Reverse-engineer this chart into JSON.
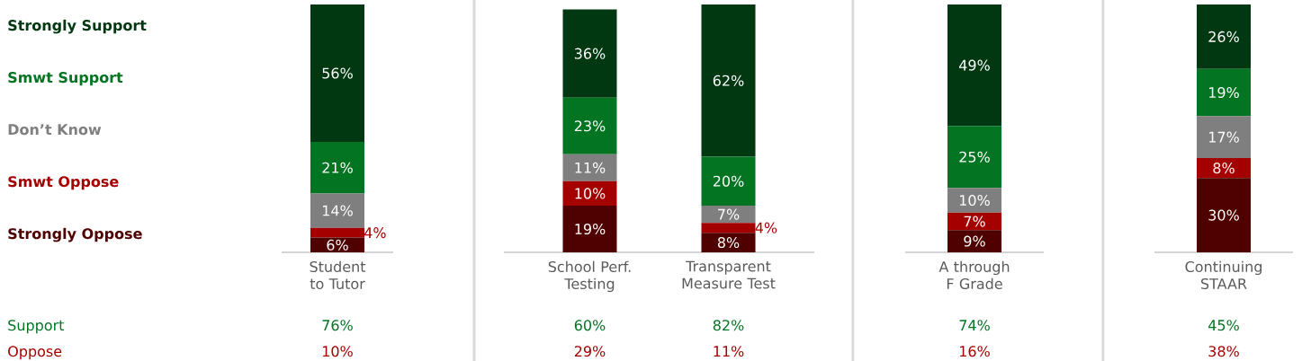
{
  "chart_data": [
    {
      "type": "bar",
      "stacked": true,
      "legend": "left",
      "categories": [
        "Student to Tutor"
      ],
      "series": [
        {
          "name": "Strongly Oppose",
          "color": "#4f0000",
          "values": [
            6
          ],
          "value_labels": [
            "6%"
          ]
        },
        {
          "name": "Smwt Oppose",
          "color": "#a50000",
          "values": [
            4
          ],
          "value_labels": [
            "4%"
          ]
        },
        {
          "name": "Don’t Know",
          "color": "#7f7f7f",
          "values": [
            14
          ],
          "value_labels": [
            "14%"
          ]
        },
        {
          "name": "Smwt Support",
          "color": "#037422",
          "values": [
            21
          ],
          "value_labels": [
            "21%"
          ]
        },
        {
          "name": "Strongly Support",
          "color": "#013812",
          "values": [
            56
          ],
          "value_labels": [
            "56%"
          ]
        }
      ],
      "annotations": [
        "Support",
        "Oppose",
        "76%",
        "10%"
      ]
    },
    {
      "type": "bar",
      "stacked": true,
      "categories": [
        "School Perf. Testing",
        "Transparent Measure Test"
      ],
      "series": [
        {
          "color": "#4f0000",
          "values": [
            19,
            8
          ],
          "value_labels": [
            "19%",
            "8%"
          ]
        },
        {
          "color": "#a50000",
          "values": [
            10,
            4
          ],
          "value_labels": [
            "10%",
            "4%"
          ]
        },
        {
          "color": "#7f7f7f",
          "values": [
            11,
            7
          ],
          "value_labels": [
            "11%",
            "7%"
          ]
        },
        {
          "color": "#037422",
          "values": [
            23,
            20
          ],
          "value_labels": [
            "23%",
            "20%"
          ]
        },
        {
          "color": "#013812",
          "values": [
            36,
            62
          ],
          "value_labels": [
            "36%",
            "62%"
          ]
        }
      ],
      "annotations": [
        "60%",
        "29%",
        "82%",
        "11%"
      ]
    },
    {
      "type": "bar",
      "stacked": true,
      "categories": [
        "A through F Grade"
      ],
      "series": [
        {
          "color": "#4f0000",
          "values": [
            9
          ],
          "value_labels": [
            "9%"
          ]
        },
        {
          "color": "#a50000",
          "values": [
            7
          ],
          "value_labels": [
            "7%"
          ]
        },
        {
          "color": "#7f7f7f",
          "values": [
            10
          ],
          "value_labels": [
            "10%"
          ]
        },
        {
          "color": "#037422",
          "values": [
            25
          ],
          "value_labels": [
            "25%"
          ]
        },
        {
          "color": "#013812",
          "values": [
            49
          ],
          "value_labels": [
            "49%"
          ]
        }
      ],
      "annotations": [
        "74%",
        "16%"
      ]
    },
    {
      "type": "bar",
      "stacked": true,
      "categories": [
        "Continuing STAAR"
      ],
      "series": [
        {
          "color": "#4f0000",
          "values": [
            30
          ],
          "value_labels": [
            "30%"
          ]
        },
        {
          "color": "#a50000",
          "values": [
            8
          ],
          "value_labels": [
            "8%"
          ]
        },
        {
          "color": "#7f7f7f",
          "values": [
            17
          ],
          "value_labels": [
            "17%"
          ]
        },
        {
          "color": "#037422",
          "values": [
            19
          ],
          "value_labels": [
            "19%"
          ]
        },
        {
          "color": "#013812",
          "values": [
            26
          ],
          "value_labels": [
            "26%"
          ]
        }
      ],
      "annotations": [
        "45%",
        "38%"
      ]
    }
  ]
}
